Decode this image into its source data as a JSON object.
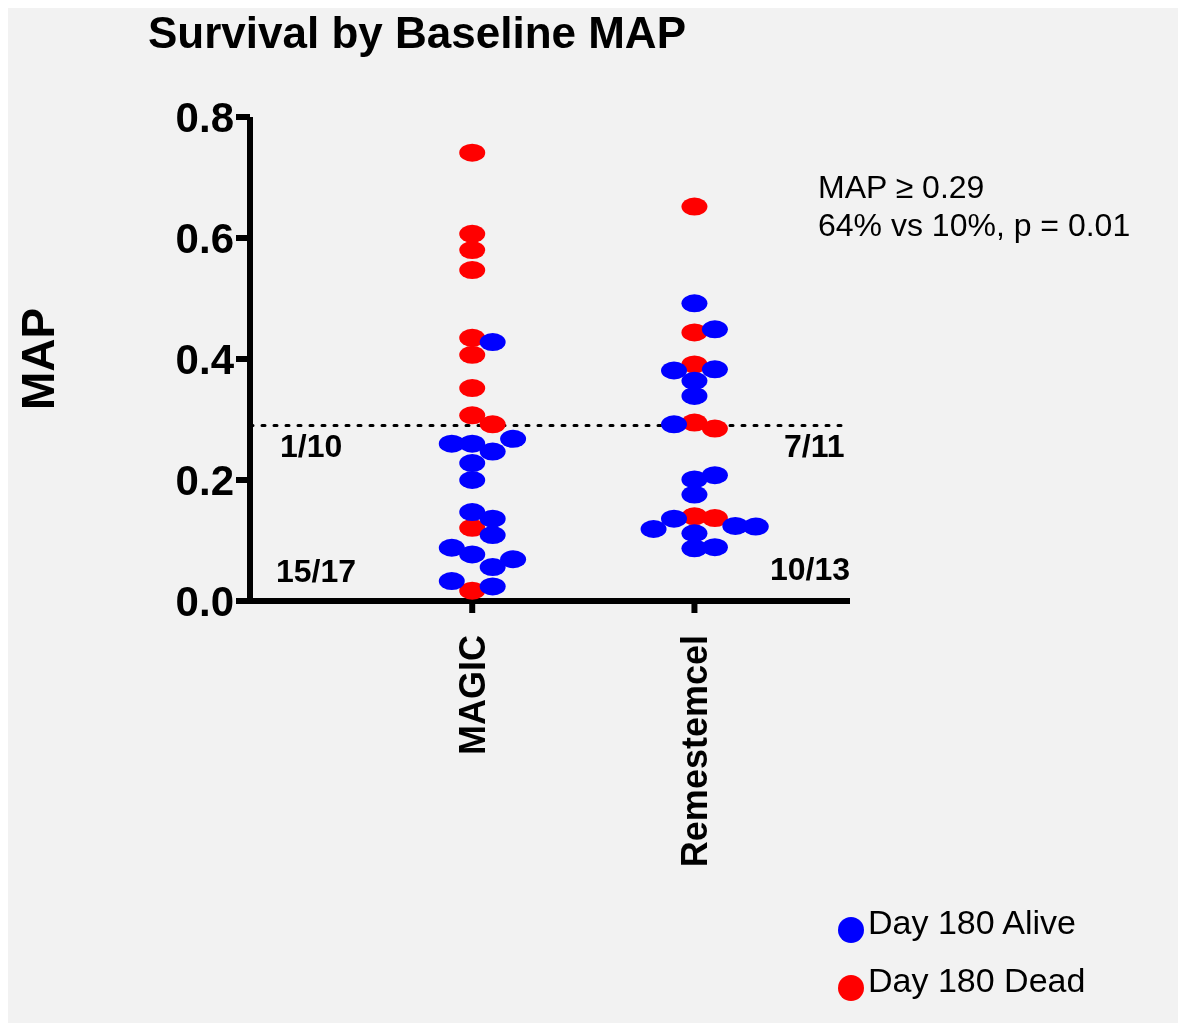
{
  "chart_data": {
    "type": "scatter",
    "title": "Survival by Baseline MAP",
    "ylabel": "MAP",
    "categories": [
      "MAGIC",
      "Remestemcel"
    ],
    "ylim": [
      0,
      0.8
    ],
    "yticks": [
      {
        "value": 0,
        "label": "0.0"
      },
      0.2,
      0.4,
      0.6,
      0.8
    ],
    "series": [
      {
        "name": "Day 180 Dead",
        "color": "#ff0000",
        "x": [
          "MAGIC",
          "MAGIC",
          "MAGIC",
          "MAGIC",
          "MAGIC",
          "MAGIC",
          "MAGIC",
          "MAGIC",
          "MAGIC",
          "MAGIC",
          "MAGIC",
          "Remestemcel",
          "Remestemcel",
          "Remestemcel",
          "Remestemcel",
          "Remestemcel",
          "Remestemcel",
          "Remestemcel"
        ],
        "values": [
          0.741,
          0.607,
          0.58,
          0.547,
          0.435,
          0.407,
          0.352,
          0.307,
          0.292,
          0.121,
          0.017,
          0.652,
          0.444,
          0.391,
          0.295,
          0.285,
          0.14,
          0.137
        ]
      },
      {
        "name": "Day 180 Alive",
        "color": "#0000ff",
        "x": [
          "MAGIC",
          "MAGIC",
          "MAGIC",
          "MAGIC",
          "MAGIC",
          "MAGIC",
          "MAGIC",
          "MAGIC",
          "MAGIC",
          "MAGIC",
          "MAGIC",
          "MAGIC",
          "MAGIC",
          "MAGIC",
          "MAGIC",
          "MAGIC",
          "Remestemcel",
          "Remestemcel",
          "Remestemcel",
          "Remestemcel",
          "Remestemcel",
          "Remestemcel",
          "Remestemcel",
          "Remestemcel",
          "Remestemcel",
          "Remestemcel",
          "Remestemcel",
          "Remestemcel",
          "Remestemcel",
          "Remestemcel",
          "Remestemcel",
          "Remestemcel",
          "Remestemcel"
        ],
        "values": [
          0.428,
          0.26,
          0.247,
          0.26,
          0.268,
          0.228,
          0.2,
          0.147,
          0.136,
          0.109,
          0.077,
          0.088,
          0.056,
          0.069,
          0.033,
          0.024,
          0.492,
          0.449,
          0.383,
          0.364,
          0.381,
          0.339,
          0.292,
          0.201,
          0.208,
          0.176,
          0.136,
          0.112,
          0.124,
          0.119,
          0.123,
          0.087,
          0.089
        ]
      }
    ],
    "marker": "circle",
    "legend": "bottom right",
    "ref_lines": [
      {
        "axis": "y",
        "value": 0.29,
        "color": "#000000",
        "line_style": "dotted"
      }
    ],
    "annotations": [
      "MAP ≥ 0.29",
      "64% vs 10%, p = 0.01",
      "1/10",
      "15/17",
      "7/11",
      "10/13"
    ]
  }
}
